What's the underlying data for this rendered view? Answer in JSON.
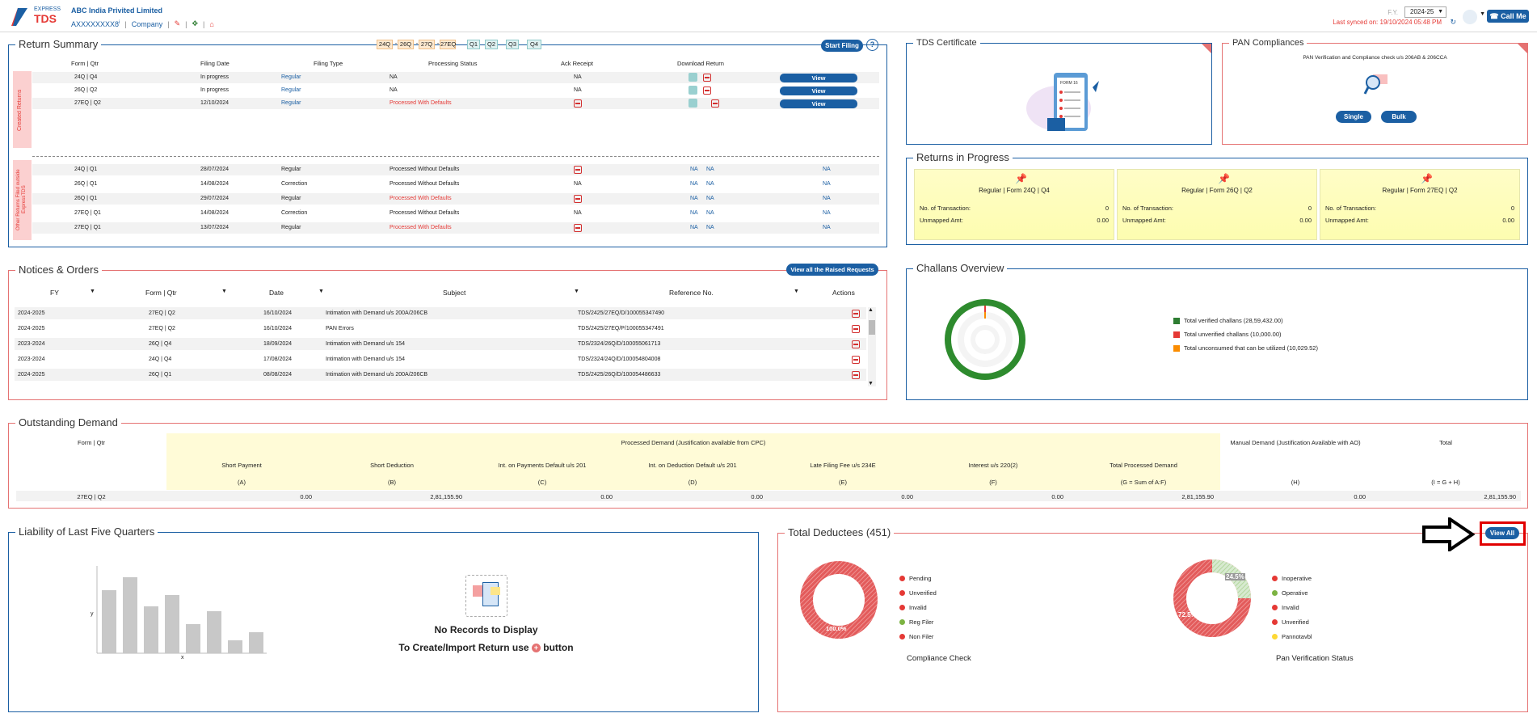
{
  "header": {
    "logo_top": "EXPRESS",
    "logo_main": "TDS",
    "company": "ABC India Privited Limited",
    "tan": "AXXXXXXXX8",
    "tan_sup": "i",
    "company_link": "Company",
    "sep": "|",
    "fy_label": "F.Y.",
    "fy_value": "2024-25",
    "sync_text": "Last synced on: 19/10/2024 05:48 PM",
    "call_me": "Call Me"
  },
  "return_summary": {
    "title": "Return Summary",
    "quarter_chips": [
      "24Q",
      "26Q",
      "27Q",
      "27EQ",
      "Q1",
      "Q2",
      "Q3",
      "Q4"
    ],
    "chip_sep": "-",
    "start_filing": "Start Filing",
    "help": "?",
    "columns": [
      "Form | Qtr",
      "Filing Date",
      "Filing Type",
      "Processing Status",
      "Ack Receipt",
      "Download Return"
    ],
    "created_label": "Created Returns",
    "other_label": "Other Returns Filed outside ExpressTDS",
    "created_rows": [
      {
        "form": "24Q | Q4",
        "date": "In progress",
        "type": "Regular",
        "status": "NA",
        "ack": "NA",
        "view": "View"
      },
      {
        "form": "26Q | Q2",
        "date": "In progress",
        "type": "Regular",
        "status": "NA",
        "ack": "NA",
        "view": "View"
      },
      {
        "form": "27EQ | Q2",
        "date": "12/10/2024",
        "type": "Regular",
        "status": "Processed With Defaults",
        "ack": "",
        "view": "View"
      }
    ],
    "other_rows": [
      {
        "form": "24Q | Q1",
        "date": "28/07/2024",
        "type": "Regular",
        "status": "Processed Without Defaults",
        "ack": "pdf",
        "na1": "NA",
        "na2": "NA",
        "na3": "NA"
      },
      {
        "form": "26Q | Q1",
        "date": "14/08/2024",
        "type": "Correction",
        "status": "Processed Without Defaults",
        "ack": "NA",
        "na1": "NA",
        "na2": "NA",
        "na3": "NA"
      },
      {
        "form": "26Q | Q1",
        "date": "29/07/2024",
        "type": "Regular",
        "status": "Processed With Defaults",
        "ack": "pdf",
        "na1": "NA",
        "na2": "NA",
        "na3": "NA"
      },
      {
        "form": "27EQ | Q1",
        "date": "14/08/2024",
        "type": "Correction",
        "status": "Processed Without Defaults",
        "ack": "NA",
        "na1": "NA",
        "na2": "NA",
        "na3": "NA"
      },
      {
        "form": "27EQ | Q1",
        "date": "13/07/2024",
        "type": "Regular",
        "status": "Processed With Defaults",
        "ack": "pdf",
        "na1": "NA",
        "na2": "NA",
        "na3": "NA"
      }
    ]
  },
  "tds_certificate": {
    "title": "TDS Certificate",
    "form_label": "FORM 16"
  },
  "pan_compliances": {
    "title": "PAN Compliances",
    "desc": "PAN Verification and Compliance check u/s 206AB & 206CCA",
    "single": "Single",
    "bulk": "Bulk"
  },
  "returns_in_progress": {
    "title": "Returns in Progress",
    "cards": [
      {
        "title": "Regular | Form 24Q | Q4",
        "txn_label": "No. of Transaction:",
        "txn": "0",
        "amt_label": "Unmapped Amt:",
        "amt": "0.00"
      },
      {
        "title": "Regular | Form 26Q | Q2",
        "txn_label": "No. of Transaction:",
        "txn": "0",
        "amt_label": "Unmapped Amt:",
        "amt": "0.00"
      },
      {
        "title": "Regular | Form 27EQ | Q2",
        "txn_label": "No. of Transaction:",
        "txn": "0",
        "amt_label": "Unmapped Amt:",
        "amt": "0.00"
      }
    ]
  },
  "notices": {
    "title": "Notices & Orders",
    "view_all": "View all the Raised Requests",
    "columns": [
      "FY",
      "Form | Qtr",
      "Date",
      "Subject",
      "Reference No.",
      "Actions"
    ],
    "rows": [
      {
        "fy": "2024-2025",
        "form": "27EQ | Q2",
        "date": "16/10/2024",
        "subject": "Intimation with Demand u/s 200A/206CB",
        "ref": "TDS/2425/27EQ/D/100055347490"
      },
      {
        "fy": "2024-2025",
        "form": "27EQ | Q2",
        "date": "16/10/2024",
        "subject": "PAN Errors",
        "ref": "TDS/2425/27EQ/P/100055347491"
      },
      {
        "fy": "2023-2024",
        "form": "26Q | Q4",
        "date": "18/09/2024",
        "subject": "Intimation with Demand u/s 154",
        "ref": "TDS/2324/26Q/D/100055061713"
      },
      {
        "fy": "2023-2024",
        "form": "24Q | Q4",
        "date": "17/08/2024",
        "subject": "Intimation with Demand u/s 154",
        "ref": "TDS/2324/24Q/D/100054804008"
      },
      {
        "fy": "2024-2025",
        "form": "26Q | Q1",
        "date": "08/08/2024",
        "subject": "Intimation with Demand u/s 200A/206CB",
        "ref": "TDS/2425/26Q/D/100054486633"
      }
    ]
  },
  "challans": {
    "title": "Challans Overview",
    "legend": [
      {
        "label": "Total verified challans (28,59,432.00)",
        "color": "#2e7d32"
      },
      {
        "label": "Total unverified challans (10,000.00)",
        "color": "#e53935"
      },
      {
        "label": "Total unconsumed that can be utilized (10,029.52)",
        "color": "#fb8c00"
      }
    ]
  },
  "outstanding": {
    "title": "Outstanding Demand",
    "form_qtr": "Form | Qtr",
    "processed_header": "Processed Demand (Justification available from CPC)",
    "manual_header": "Manual Demand (Justification Available with AO)",
    "total_header": "Total",
    "cols": [
      {
        "label": "Short Payment",
        "code": "(A)",
        "value": "0.00"
      },
      {
        "label": "Short Deduction",
        "code": "(B)",
        "value": "2,81,155.90"
      },
      {
        "label": "Int. on Payments Default u/s 201",
        "code": "(C)",
        "value": "0.00"
      },
      {
        "label": "Int. on Deduction Default u/s 201",
        "code": "(D)",
        "value": "0.00"
      },
      {
        "label": "Late Filing Fee u/s 234E",
        "code": "(E)",
        "value": "0.00"
      },
      {
        "label": "Interest u/s 220(2)",
        "code": "(F)",
        "value": "0.00"
      },
      {
        "label": "Total Processed Demand",
        "code": "(G = Sum of A:F)",
        "value": "2,81,155.90"
      }
    ],
    "manual_code": "(H)",
    "manual_value": "0.00",
    "total_code": "(I = G + H)",
    "total_value": "2,81,155.90",
    "row_form": "27EQ | Q2"
  },
  "liability": {
    "title": "Liability of Last Five Quarters",
    "axis_x": "x",
    "axis_y": "y",
    "no_records": "No Records to Display",
    "create_pre": "To Create/Import Return use",
    "create_post": "button"
  },
  "deductees": {
    "title": "Total Deductees (451)",
    "view_all": "View All",
    "compliance": {
      "label": "Compliance Check",
      "pct": "100.0%",
      "legend": [
        {
          "label": "Pending",
          "color": "#e53935"
        },
        {
          "label": "Unverified",
          "color": "#e53935"
        },
        {
          "label": "Invalid",
          "color": "#e53935"
        },
        {
          "label": "Reg Filer",
          "color": "#7cb342"
        },
        {
          "label": "Non Filer",
          "color": "#e53935"
        }
      ]
    },
    "pan": {
      "label": "Pan Verification Status",
      "pct_big": "72.5%",
      "pct_small": "24.5%",
      "legend": [
        {
          "label": "Inoperative",
          "color": "#e53935"
        },
        {
          "label": "Operative",
          "color": "#7cb342"
        },
        {
          "label": "Invalid",
          "color": "#e53935"
        },
        {
          "label": "Unverified",
          "color": "#e53935"
        },
        {
          "label": "Pannotavbl",
          "color": "#fdd835"
        }
      ]
    }
  }
}
